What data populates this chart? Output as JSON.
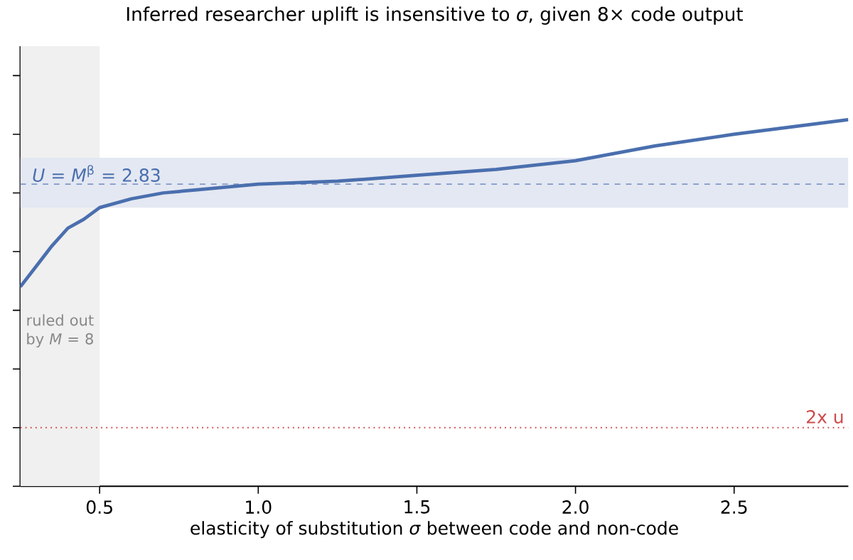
{
  "chart_data": {
    "type": "line",
    "title": "Inferred researcher uplift is insensitive to *σ*, given 8× code output",
    "xlabel": "elasticity of substitution *σ* between code and non-code",
    "x": [
      0.25,
      0.3,
      0.35,
      0.4,
      0.45,
      0.5,
      0.6,
      0.7,
      0.8,
      1.0,
      1.25,
      1.5,
      1.75,
      2.0,
      2.25,
      2.5,
      2.86
    ],
    "series": [
      {
        "color": "#4a6fae",
        "values": [
          2.48,
          2.55,
          2.62,
          2.68,
          2.71,
          2.75,
          2.78,
          2.8,
          2.81,
          2.83,
          2.84,
          2.86,
          2.88,
          2.91,
          2.96,
          3.0,
          3.05
        ]
      }
    ],
    "xlim": [
      0.25,
      2.86
    ],
    "ylim": [
      1.8,
      3.3
    ],
    "xticks": [
      0.5,
      {
        "value": 1.0,
        "label": "1.0"
      },
      1.5,
      {
        "value": 2.0,
        "label": "2.0"
      },
      2.5
    ],
    "yticks": [
      {
        "value": 1.8,
        "label": null
      },
      {
        "value": 2.0,
        "label": null
      },
      {
        "value": 2.2,
        "label": null
      },
      {
        "value": 2.4,
        "label": null
      },
      {
        "value": 2.6,
        "label": null
      },
      {
        "value": 2.8,
        "label": null
      },
      {
        "value": 3.0,
        "label": null
      },
      {
        "value": 3.2,
        "label": null
      }
    ],
    "tick_labels": "x",
    "bands": [
      {
        "axis": "x",
        "from": 0.25,
        "to": 0.5,
        "label": "ruled out by *M* = 8",
        "color": "#f0f0f0"
      },
      {
        "axis": "y",
        "from": 2.75,
        "to": 2.92,
        "color": "#e4e8f2"
      }
    ],
    "ref_lines": [
      {
        "axis": "y",
        "value": 2.83,
        "label": "*U* = *M*$^{β}$ = 2.83",
        "color": "#7f98c8",
        "line_style": "dashed"
      },
      {
        "axis": "y",
        "value": 2.0,
        "label": "2x u",
        "color": "#d04a4a",
        "line_style": "dotted"
      }
    ],
    "line_style": "solid",
    "marker": "none",
    "grid": false
  }
}
